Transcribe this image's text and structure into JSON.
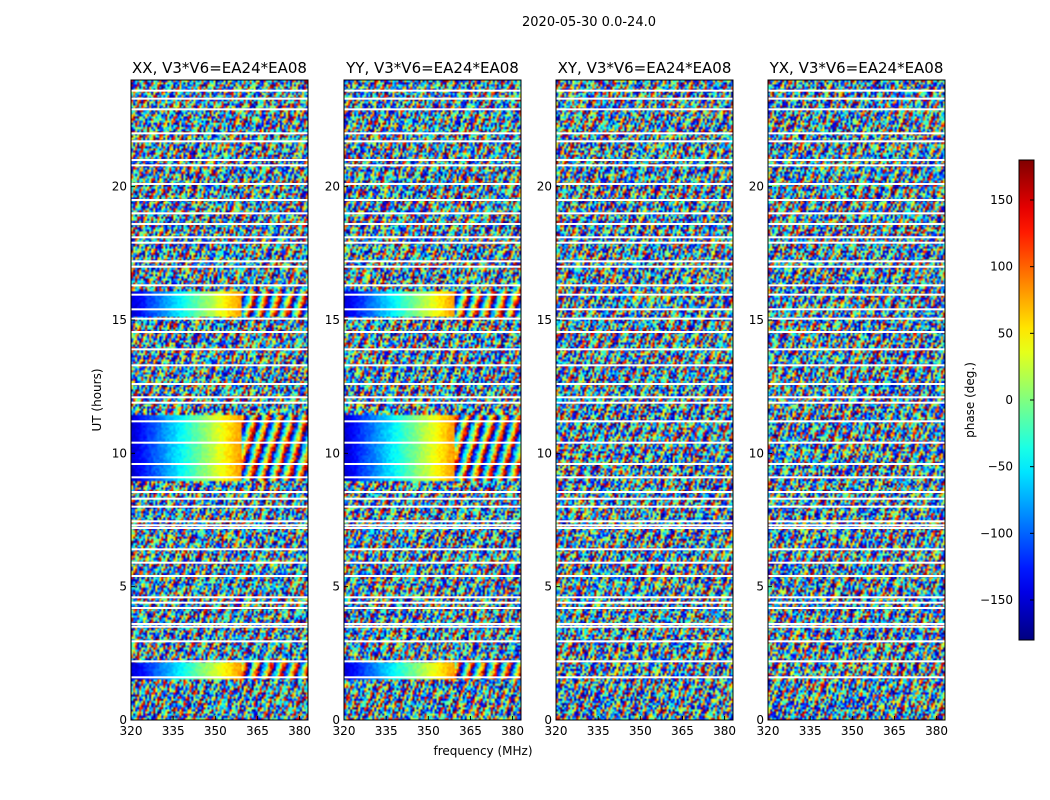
{
  "figure": {
    "suptitle": "2020-05-30 0.0-24.0"
  },
  "chart_data": {
    "type": "heatmap",
    "xlabel": "frequency (MHz)",
    "ylabel": "UT (hours)",
    "xlim": [
      320,
      383
    ],
    "ylim": [
      0,
      24
    ],
    "xticks": [
      "320",
      "335",
      "350",
      "365",
      "380"
    ],
    "yticks": [
      "0",
      "5",
      "10",
      "15",
      "20"
    ],
    "panels": [
      {
        "title": "XX, V3*V6=EA24*EA08",
        "coherent": true
      },
      {
        "title": "YY, V3*V6=EA24*EA08",
        "coherent": true
      },
      {
        "title": "XY, V3*V6=EA24*EA08",
        "coherent": false
      },
      {
        "title": "YX, V3*V6=EA24*EA08",
        "coherent": false
      }
    ],
    "coherent_bands_hours": [
      [
        1.55,
        2.15
      ],
      [
        9.0,
        11.4
      ],
      [
        15.1,
        16.1
      ]
    ],
    "flagged_rows_hours": [
      1.6,
      2.2,
      2.95,
      3.5,
      3.6,
      4.2,
      4.4,
      4.6,
      5.4,
      5.9,
      6.4,
      7.2,
      7.3,
      7.45,
      8.0,
      8.3,
      8.55,
      9.1,
      9.6,
      10.4,
      11.2,
      11.9,
      12.1,
      12.6,
      13.3,
      13.9,
      14.55,
      15.05,
      15.4,
      15.95,
      16.3,
      17.0,
      17.2,
      17.9,
      18.1,
      18.6,
      19.0,
      19.5,
      20.1,
      20.8,
      21.0,
      21.7,
      22.0,
      22.9,
      23.3,
      23.6
    ],
    "colorbar": {
      "label": "phase (deg.)",
      "range": [
        -180,
        180
      ],
      "ticks": [
        "−150",
        "−100",
        "−50",
        "0",
        "50",
        "100",
        "150"
      ],
      "tick_values": [
        -150,
        -100,
        -50,
        0,
        50,
        100,
        150
      ],
      "colormap": "jet"
    }
  }
}
